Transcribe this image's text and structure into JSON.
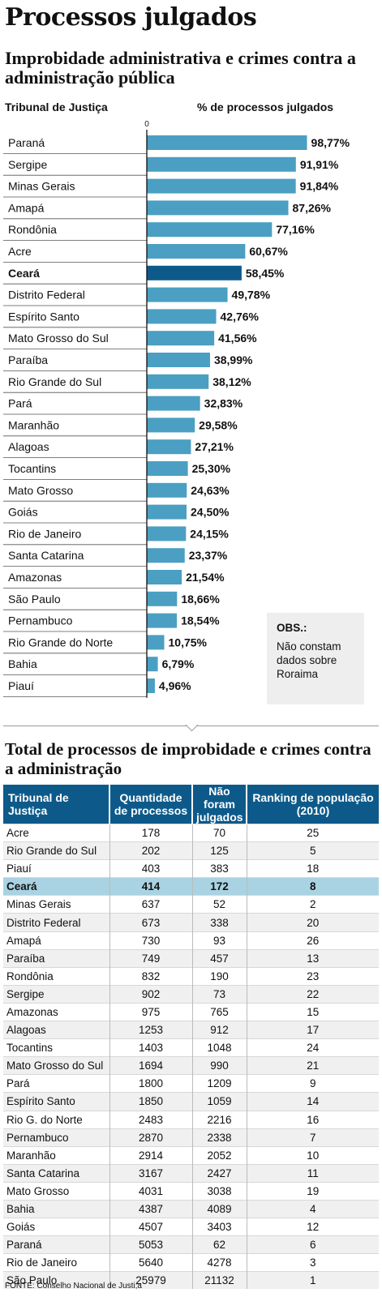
{
  "header": {
    "title": "Processos julgados",
    "subtitle": "Improbidade administrativa e crimes contra a administração pública",
    "left_column": "Tribunal de Justiça",
    "right_column": "% de processos julgados"
  },
  "chart_data": {
    "type": "bar",
    "orientation": "horizontal",
    "axis_zero_label": "0",
    "xlim": [
      0,
      100
    ],
    "unit": "%",
    "highlight": "Ceará",
    "colors": {
      "bar": "#4a9fc2",
      "highlight": "#0d5a8a"
    },
    "categories": [
      "Paraná",
      "Sergipe",
      "Minas Gerais",
      "Amapá",
      "Rondônia",
      "Acre",
      "Ceará",
      "Distrito Federal",
      "Espírito Santo",
      "Mato Grosso do Sul",
      "Paraíba",
      "Rio Grande do Sul",
      "Pará",
      "Maranhão",
      "Alagoas",
      "Tocantins",
      "Mato Grosso",
      "Goiás",
      "Rio de Janeiro",
      "Santa Catarina",
      "Amazonas",
      "São Paulo",
      "Pernambuco",
      "Rio Grande do Norte",
      "Bahia",
      "Piauí"
    ],
    "values": [
      98.77,
      91.91,
      91.84,
      87.26,
      77.16,
      60.67,
      58.45,
      49.78,
      42.76,
      41.56,
      38.99,
      38.12,
      32.83,
      29.58,
      27.21,
      25.3,
      24.63,
      24.5,
      24.15,
      23.37,
      21.54,
      18.66,
      18.54,
      10.75,
      6.79,
      4.96
    ],
    "value_labels": [
      "98,77%",
      "91,91%",
      "91,84%",
      "87,26%",
      "77,16%",
      "60,67%",
      "58,45%",
      "49,78%",
      "42,76%",
      "41,56%",
      "38,99%",
      "38,12%",
      "32,83%",
      "29,58%",
      "27,21%",
      "25,30%",
      "24,63%",
      "24,50%",
      "24,15%",
      "23,37%",
      "21,54%",
      "18,66%",
      "18,54%",
      "10,75%",
      "6,79%",
      "4,96%"
    ]
  },
  "note": {
    "heading": "OBS.:",
    "text": "Não constam dados sobre Roraima"
  },
  "table": {
    "title": "Total de processos de improbidade e crimes contra a administração",
    "headers": [
      "Tribunal de Justiça",
      "Quantidade de processos",
      "Não foram julgados",
      "Ranking de população (2010)"
    ],
    "highlight_row": "Ceará",
    "rows": [
      [
        "Acre",
        "178",
        "70",
        "25"
      ],
      [
        "Rio Grande do Sul",
        "202",
        "125",
        "5"
      ],
      [
        "Piauí",
        "403",
        "383",
        "18"
      ],
      [
        "Ceará",
        "414",
        "172",
        "8"
      ],
      [
        "Minas Gerais",
        "637",
        "52",
        "2"
      ],
      [
        "Distrito Federal",
        "673",
        "338",
        "20"
      ],
      [
        "Amapá",
        "730",
        "93",
        "26"
      ],
      [
        "Paraíba",
        "749",
        "457",
        "13"
      ],
      [
        "Rondônia",
        "832",
        "190",
        "23"
      ],
      [
        "Sergipe",
        "902",
        "73",
        "22"
      ],
      [
        "Amazonas",
        "975",
        "765",
        "15"
      ],
      [
        "Alagoas",
        "1253",
        "912",
        "17"
      ],
      [
        "Tocantins",
        "1403",
        "1048",
        "24"
      ],
      [
        "Mato Grosso do Sul",
        "1694",
        "990",
        "21"
      ],
      [
        "Pará",
        "1800",
        "1209",
        "9"
      ],
      [
        "Espírito Santo",
        "1850",
        "1059",
        "14"
      ],
      [
        "Rio G. do Norte",
        "2483",
        "2216",
        "16"
      ],
      [
        "Pernambuco",
        "2870",
        "2338",
        "7"
      ],
      [
        "Maranhão",
        "2914",
        "2052",
        "10"
      ],
      [
        "Santa Catarina",
        "3167",
        "2427",
        "11"
      ],
      [
        "Mato Grosso",
        "4031",
        "3038",
        "19"
      ],
      [
        "Bahia",
        "4387",
        "4089",
        "4"
      ],
      [
        "Goiás",
        "4507",
        "3403",
        "12"
      ],
      [
        "Paraná",
        "5053",
        "62",
        "6"
      ],
      [
        "Rio de Janeiro",
        "5640",
        "4278",
        "3"
      ],
      [
        "São Paulo",
        "25979",
        "21132",
        "1"
      ]
    ]
  },
  "footer": {
    "source": "FONTE: Conselho Nacional de Justi;a"
  }
}
